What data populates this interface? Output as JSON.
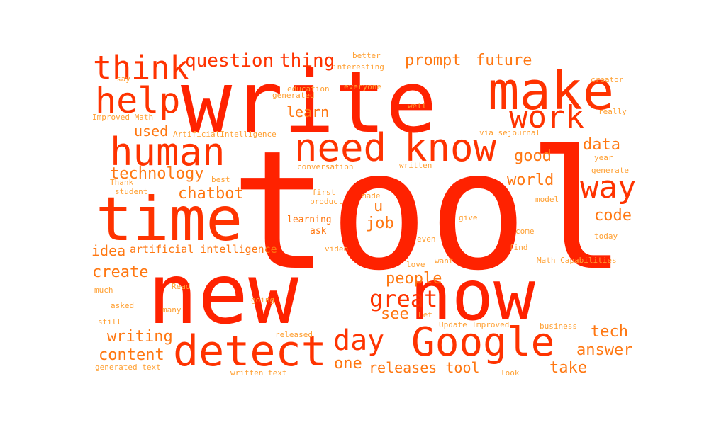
{
  "colors": {
    "background": "#ffffff",
    "large": "#ff2200",
    "mid": "#ff3300",
    "small": "#ff7711",
    "tiny": "#ffa033"
  },
  "words": [
    {
      "text": "tool"
    },
    {
      "text": "write"
    },
    {
      "text": "new"
    },
    {
      "text": "now"
    },
    {
      "text": "make"
    },
    {
      "text": "time"
    },
    {
      "text": "detect"
    },
    {
      "text": "Google"
    },
    {
      "text": "human"
    },
    {
      "text": "need"
    },
    {
      "text": "know"
    },
    {
      "text": "help"
    },
    {
      "text": "work"
    },
    {
      "text": "think"
    },
    {
      "text": "way"
    },
    {
      "text": "day"
    },
    {
      "text": "great"
    },
    {
      "text": "question"
    },
    {
      "text": "thing"
    },
    {
      "text": "prompt"
    },
    {
      "text": "future"
    },
    {
      "text": "technology"
    },
    {
      "text": "chatbot"
    },
    {
      "text": "good"
    },
    {
      "text": "world"
    },
    {
      "text": "data"
    },
    {
      "text": "code"
    },
    {
      "text": "people"
    },
    {
      "text": "see"
    },
    {
      "text": "one"
    },
    {
      "text": "job"
    },
    {
      "text": "u"
    },
    {
      "text": "writing"
    },
    {
      "text": "content"
    },
    {
      "text": "create"
    },
    {
      "text": "idea"
    },
    {
      "text": "used"
    },
    {
      "text": "learn"
    },
    {
      "text": "tech"
    },
    {
      "text": "answer"
    },
    {
      "text": "take"
    },
    {
      "text": "releases tool"
    },
    {
      "text": "artificial intelligence"
    },
    {
      "text": "ArtificialIntelligence"
    },
    {
      "text": "better"
    },
    {
      "text": "interesting"
    },
    {
      "text": "education"
    },
    {
      "text": "everyone"
    },
    {
      "text": "generated"
    },
    {
      "text": "say"
    },
    {
      "text": "creator"
    },
    {
      "text": "well"
    },
    {
      "text": "really"
    },
    {
      "text": "Improved Math"
    },
    {
      "text": "via sejournal"
    },
    {
      "text": "conversation"
    },
    {
      "text": "written"
    },
    {
      "text": "year"
    },
    {
      "text": "generate"
    },
    {
      "text": "best"
    },
    {
      "text": "Thank"
    },
    {
      "text": "student"
    },
    {
      "text": "first"
    },
    {
      "text": "made"
    },
    {
      "text": "product"
    },
    {
      "text": "model"
    },
    {
      "text": "learning"
    },
    {
      "text": "ask"
    },
    {
      "text": "give"
    },
    {
      "text": "come"
    },
    {
      "text": "today"
    },
    {
      "text": "even"
    },
    {
      "text": "find"
    },
    {
      "text": "video"
    },
    {
      "text": "want"
    },
    {
      "text": "Math Capabilities"
    },
    {
      "text": "love"
    },
    {
      "text": "much"
    },
    {
      "text": "Read"
    },
    {
      "text": "going"
    },
    {
      "text": "asked"
    },
    {
      "text": "many"
    },
    {
      "text": "Let"
    },
    {
      "text": "still"
    },
    {
      "text": "Update Improved"
    },
    {
      "text": "business"
    },
    {
      "text": "released"
    },
    {
      "text": "generated text"
    },
    {
      "text": "written text"
    },
    {
      "text": "look"
    }
  ]
}
